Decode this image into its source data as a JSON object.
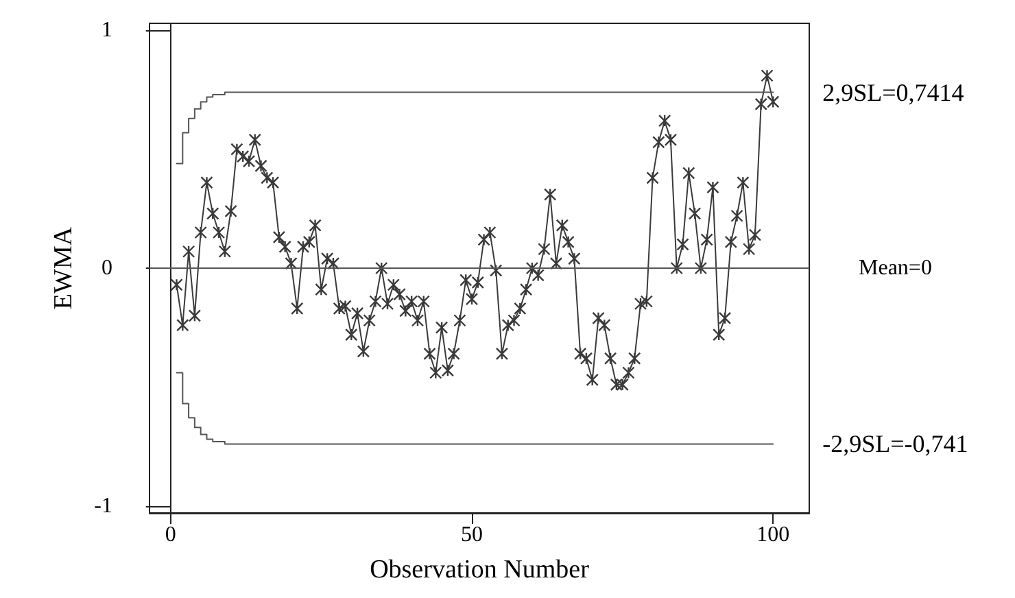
{
  "chart_data": {
    "type": "line",
    "xlabel": "Observation Number",
    "ylabel": "EWMA",
    "x": [
      1,
      2,
      3,
      4,
      5,
      6,
      7,
      8,
      9,
      10,
      11,
      12,
      13,
      14,
      15,
      16,
      17,
      18,
      19,
      20,
      21,
      22,
      23,
      24,
      25,
      26,
      27,
      28,
      29,
      30,
      31,
      32,
      33,
      34,
      35,
      36,
      37,
      38,
      39,
      40,
      41,
      42,
      43,
      44,
      45,
      46,
      47,
      48,
      49,
      50,
      51,
      52,
      53,
      54,
      55,
      56,
      57,
      58,
      59,
      60,
      61,
      62,
      63,
      64,
      65,
      66,
      67,
      68,
      69,
      70,
      71,
      72,
      73,
      74,
      75,
      76,
      77,
      78,
      79,
      80,
      81,
      82,
      83,
      84,
      85,
      86,
      87,
      88,
      89,
      90,
      91,
      92,
      93,
      94,
      95,
      96,
      97,
      98,
      99,
      100
    ],
    "series": [
      {
        "color": "#3a3a3a",
        "marker": "cross",
        "values": [
          -0.07,
          -0.24,
          0.07,
          -0.2,
          0.15,
          0.36,
          0.23,
          0.15,
          0.07,
          0.24,
          0.5,
          0.47,
          0.45,
          0.54,
          0.43,
          0.38,
          0.36,
          0.13,
          0.09,
          0.02,
          -0.17,
          0.09,
          0.11,
          0.18,
          -0.09,
          0.04,
          0.02,
          -0.17,
          -0.16,
          -0.28,
          -0.19,
          -0.35,
          -0.22,
          -0.14,
          0.0,
          -0.15,
          -0.07,
          -0.11,
          -0.18,
          -0.14,
          -0.22,
          -0.14,
          -0.36,
          -0.44,
          -0.25,
          -0.43,
          -0.36,
          -0.22,
          -0.05,
          -0.13,
          -0.06,
          0.12,
          0.15,
          -0.01,
          -0.36,
          -0.24,
          -0.22,
          -0.17,
          -0.09,
          0.0,
          -0.03,
          0.08,
          0.31,
          0.02,
          0.18,
          0.11,
          0.04,
          -0.36,
          -0.38,
          -0.47,
          -0.21,
          -0.24,
          -0.38,
          -0.49,
          -0.49,
          -0.44,
          -0.38,
          -0.15,
          -0.14,
          0.38,
          0.53,
          0.62,
          0.54,
          0.0,
          0.1,
          0.4,
          0.23,
          0.0,
          0.12,
          0.34,
          -0.28,
          -0.21,
          0.11,
          0.22,
          0.36,
          0.08,
          0.14,
          0.69,
          0.81,
          0.7
        ]
      },
      {
        "type": "step",
        "name": "2,9SL=0,7414",
        "color": "#555555",
        "marker": "none",
        "x": [
          1,
          2,
          3,
          4,
          5,
          6,
          7,
          8,
          9,
          10,
          100
        ],
        "values": [
          0.44,
          0.57,
          0.63,
          0.67,
          0.7,
          0.72,
          0.73,
          0.73,
          0.74,
          0.74,
          0.74
        ]
      },
      {
        "type": "step",
        "name": "-2,9SL=-0,741",
        "color": "#555555",
        "marker": "none",
        "x": [
          1,
          2,
          3,
          4,
          5,
          6,
          7,
          8,
          9,
          10,
          100
        ],
        "values": [
          -0.44,
          -0.57,
          -0.63,
          -0.67,
          -0.7,
          -0.72,
          -0.73,
          -0.73,
          -0.74,
          -0.74,
          -0.74
        ]
      }
    ],
    "ref_lines": [
      {
        "axis": "y",
        "value": 0,
        "label": "Mean=0",
        "color": "#555555"
      }
    ],
    "xlim": [
      -3.5,
      106
    ],
    "xticks": [
      0,
      50,
      100
    ],
    "ylim": [
      -1.03,
      1.03
    ],
    "yticks": [
      -1,
      0,
      1
    ],
    "grid": false,
    "legend": false,
    "line_style": "solid"
  }
}
